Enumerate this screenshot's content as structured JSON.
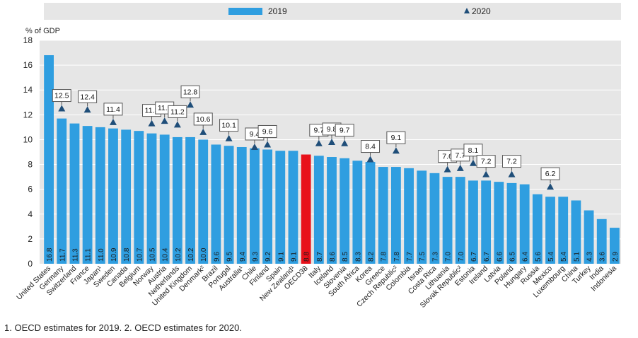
{
  "legend": {
    "label_2019": "2019",
    "label_2020": "2020"
  },
  "footnote": "1. OECD estimates for 2019. 2. OECD estimates for 2020.",
  "colors": {
    "bar": "#2f9ee0",
    "highlight": "#e8111a",
    "marker": "#1f4e79",
    "plot_bg": "#e6e6e6",
    "grid": "#ffffff"
  },
  "chart_data": {
    "type": "bar",
    "ylabel": "% of GDP",
    "ylim": [
      0,
      18
    ],
    "yticks": [
      0,
      2,
      4,
      6,
      8,
      10,
      12,
      14,
      16,
      18
    ],
    "highlight": "OECD38",
    "categories": [
      "United States",
      "Germany",
      "Switzerland",
      "France",
      "Japan¹",
      "Sweden",
      "Canada",
      "Belgium",
      "Norway",
      "Austria",
      "Netherlands",
      "United Kingdom",
      "Denmark²",
      "Brazil",
      "Portugal",
      "Australia¹",
      "Chile",
      "Finland",
      "Spain",
      "New Zealand¹",
      "OECD38",
      "Italy",
      "Iceland",
      "Slovenia",
      "South Africa",
      "Korea",
      "Greece",
      "Czech Republic²",
      "Colombia",
      "Israel",
      "Costa Rica",
      "Lithuania",
      "Slovak Republic²",
      "Estonia",
      "Ireland",
      "Latvia",
      "Poland",
      "Hungary",
      "Russia",
      "Mexico",
      "Luxembourg",
      "China",
      "Turkey",
      "India",
      "Indonesia"
    ],
    "series": [
      {
        "name": "2019",
        "values": [
          16.8,
          11.7,
          11.3,
          11.1,
          11.0,
          10.9,
          10.8,
          10.7,
          10.5,
          10.4,
          10.2,
          10.2,
          10.0,
          9.6,
          9.5,
          9.4,
          9.3,
          9.2,
          9.1,
          9.1,
          8.8,
          8.7,
          8.6,
          8.5,
          8.3,
          8.2,
          7.8,
          7.8,
          7.7,
          7.5,
          7.3,
          7.0,
          7.0,
          6.7,
          6.7,
          6.6,
          6.5,
          6.4,
          5.6,
          5.4,
          5.4,
          5.1,
          4.3,
          3.6,
          2.9
        ]
      },
      {
        "name": "2020",
        "values": [
          null,
          12.5,
          null,
          12.4,
          null,
          11.4,
          null,
          null,
          11.3,
          11.5,
          11.2,
          12.8,
          10.6,
          null,
          10.1,
          null,
          9.4,
          9.6,
          null,
          null,
          null,
          9.7,
          9.8,
          9.7,
          null,
          8.4,
          null,
          9.1,
          null,
          null,
          null,
          7.6,
          7.7,
          8.1,
          7.2,
          null,
          7.2,
          null,
          null,
          6.2,
          null,
          null,
          null,
          null,
          null
        ]
      }
    ]
  }
}
